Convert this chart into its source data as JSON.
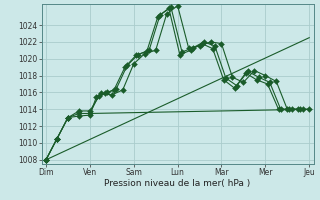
{
  "background_color": "#cce8e8",
  "grid_color": "#aacccc",
  "line_color": "#1a5c2a",
  "xlabel": "Pression niveau de la mer( hPa )",
  "ylim": [
    1007.5,
    1026.5
  ],
  "yticks": [
    1008,
    1010,
    1012,
    1014,
    1016,
    1018,
    1020,
    1022,
    1024
  ],
  "x_labels": [
    "Dim",
    "Ven",
    "Sam",
    "Lun",
    "Mar",
    "Mer",
    "Jeu"
  ],
  "x_tick_positions": [
    0,
    2,
    4,
    6,
    8,
    10,
    12
  ],
  "series1_x": [
    0,
    0.5,
    1.0,
    1.5,
    2.0,
    2.5,
    3.0,
    3.5,
    4.0,
    4.5,
    5.0,
    5.5,
    6.0,
    6.5,
    7.0,
    7.5,
    8.0,
    8.5,
    9.0,
    9.5,
    10.0,
    10.5,
    11.0,
    11.5,
    12.0
  ],
  "series1": [
    1008,
    1010.5,
    1013.0,
    1013.8,
    1013.8,
    1015.9,
    1015.7,
    1016.3,
    1019.4,
    1020.6,
    1021.0,
    1025.3,
    1026.3,
    1021.3,
    1021.5,
    1022.0,
    1021.8,
    1017.8,
    1017.2,
    1018.6,
    1018.0,
    1017.3,
    1014.0,
    1014.0,
    1014.0
  ],
  "series2_x": [
    0,
    0.5,
    1.0,
    1.5,
    2.0,
    2.4,
    2.8,
    3.2,
    3.7,
    4.2,
    4.7,
    5.2,
    5.7,
    6.2,
    6.7,
    7.2,
    7.7,
    8.2,
    8.7,
    9.2,
    9.7,
    10.2,
    10.7,
    11.2,
    11.7
  ],
  "series2": [
    1008,
    1010.5,
    1013.0,
    1013.5,
    1013.5,
    1015.6,
    1016.0,
    1016.4,
    1019.2,
    1020.5,
    1021.0,
    1025.2,
    1026.1,
    1020.8,
    1021.3,
    1022.0,
    1021.5,
    1017.7,
    1016.8,
    1018.5,
    1017.8,
    1017.2,
    1014.0,
    1014.0,
    1014.0
  ],
  "series3_x": [
    0,
    0.5,
    1.0,
    1.5,
    2.0,
    2.3,
    2.7,
    3.1,
    3.6,
    4.1,
    4.6,
    5.1,
    5.6,
    6.1,
    6.6,
    7.1,
    7.6,
    8.1,
    8.6,
    9.1,
    9.6,
    10.1,
    10.6,
    11.1,
    11.6
  ],
  "series3": [
    1008,
    1010.5,
    1013.0,
    1013.2,
    1013.3,
    1015.5,
    1015.9,
    1016.3,
    1019.0,
    1020.4,
    1020.9,
    1025.0,
    1026.0,
    1020.5,
    1021.0,
    1021.8,
    1021.2,
    1017.5,
    1016.5,
    1018.3,
    1017.5,
    1017.0,
    1014.0,
    1014.0,
    1014.0
  ],
  "flat_line_x": [
    2.0,
    12.0
  ],
  "flat_line_y": [
    1013.5,
    1014.0
  ],
  "trend_line_x": [
    0,
    12
  ],
  "trend_line_y": [
    1008,
    1022.5
  ],
  "n_points": 25
}
